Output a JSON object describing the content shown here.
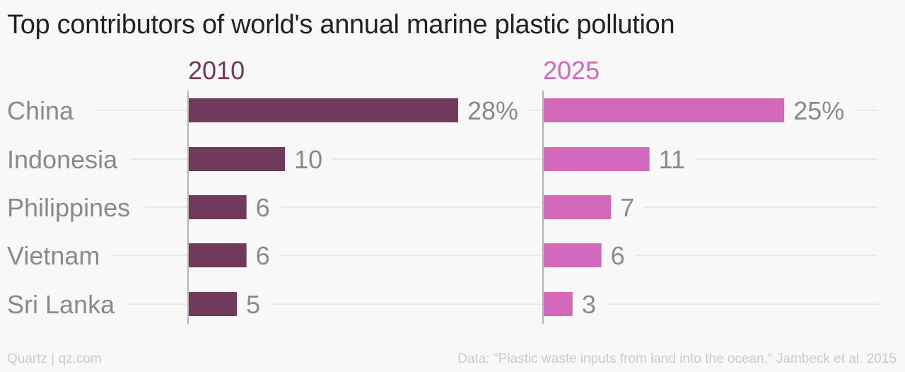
{
  "chart_title": "Top contributors of world's annual marine plastic pollution",
  "chart_data": {
    "type": "bar",
    "title": "Top contributors of world's annual marine plastic pollution",
    "categories": [
      "China",
      "Indonesia",
      "Philippines",
      "Vietnam",
      "Sri Lanka"
    ],
    "value_labels": {
      "2010": [
        "28%",
        "10",
        "6",
        "6",
        "5"
      ],
      "2025": [
        "25%",
        "11",
        "7",
        "6",
        "3"
      ]
    },
    "series": [
      {
        "name": "2010",
        "values": [
          28,
          10,
          6,
          6,
          5
        ],
        "color": "#6f3a5b"
      },
      {
        "name": "2025",
        "values": [
          25,
          11,
          7,
          6,
          3
        ],
        "color": "#d468bb"
      }
    ],
    "orientation": "horizontal",
    "unit": "%",
    "xlim": [
      0,
      28
    ],
    "grid": true,
    "legend": "none"
  },
  "footer": {
    "credit": "Quartz | qz.com",
    "source": "Data: \"Plastic waste inputs from land into the ocean,\" Jambeck et al. 2015"
  }
}
